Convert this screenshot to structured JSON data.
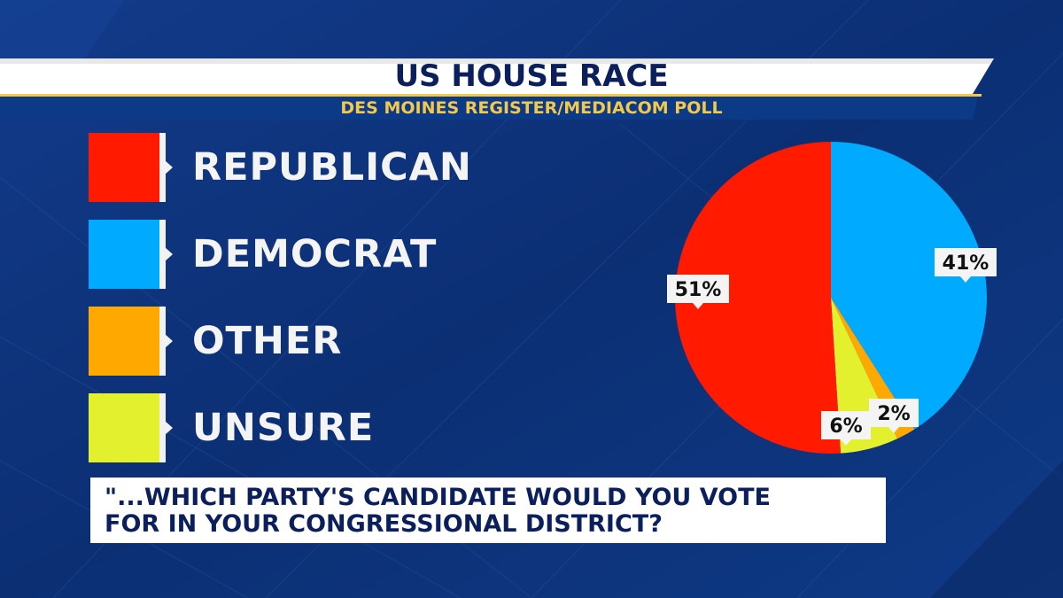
{
  "header": {
    "title": "US HOUSE RACE",
    "subtitle": "DES MOINES REGISTER/MEDIACOM POLL"
  },
  "question": "\"...WHICH PARTY'S CANDIDATE WOULD YOU VOTE\nFOR IN YOUR CONGRESSIONAL DISTRICT?",
  "colors": {
    "background": "#0c2f74",
    "republican": "#ff1a00",
    "democrat": "#00aaff",
    "other": "#ffa800",
    "unsure": "#e2f02d"
  },
  "chart_data": {
    "type": "pie",
    "title": "US HOUSE RACE",
    "subtitle": "DES MOINES REGISTER/MEDIACOM POLL",
    "legend_position": "left",
    "slices": [
      {
        "label": "REPUBLICAN",
        "value": 51,
        "value_label": "51%",
        "color": "#ff1a00"
      },
      {
        "label": "DEMOCRAT",
        "value": 41,
        "value_label": "41%",
        "color": "#00aaff"
      },
      {
        "label": "OTHER",
        "value": 2,
        "value_label": "2%",
        "color": "#ffa800"
      },
      {
        "label": "UNSURE",
        "value": 6,
        "value_label": "6%",
        "color": "#e2f02d"
      }
    ]
  }
}
